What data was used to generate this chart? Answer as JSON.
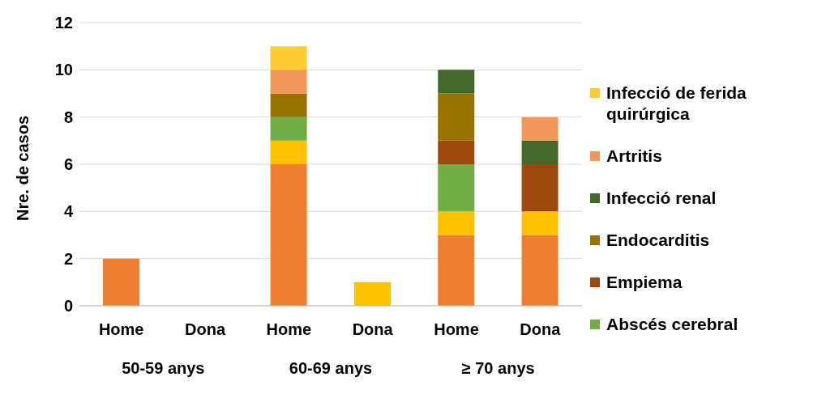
{
  "chart_data": {
    "type": "bar",
    "stacked": true,
    "ylabel": "Nre. de casos",
    "categories": [
      "Home",
      "Dona",
      "Home",
      "Dona",
      "Home",
      "Dona"
    ],
    "annotations": [
      "50-59 anys",
      "60-69 anys",
      "≥ 70 anys"
    ],
    "series": [
      {
        "color": "#ed7d31",
        "values": [
          2,
          null,
          6,
          null,
          3,
          3
        ]
      },
      {
        "color": "#ffc000",
        "values": [
          null,
          null,
          1,
          1,
          1,
          1
        ]
      },
      {
        "name": "Abscés cerebral",
        "color": "#70ad47",
        "values": [
          null,
          null,
          1,
          null,
          2,
          null
        ]
      },
      {
        "name": "Empiema",
        "color": "#9e480e",
        "values": [
          null,
          null,
          null,
          null,
          1,
          2
        ]
      },
      {
        "name": "Endocarditis",
        "color": "#997300",
        "values": [
          null,
          null,
          1,
          null,
          2,
          null
        ]
      },
      {
        "name": "Infecció renal",
        "color": "#43682b",
        "values": [
          null,
          null,
          null,
          null,
          1,
          1
        ]
      },
      {
        "name": "Artritis",
        "color": "#f1975a",
        "values": [
          null,
          null,
          1,
          null,
          null,
          1
        ]
      },
      {
        "name": "Infecció de ferida quirúrgica",
        "color": "#ffcd33",
        "values": [
          null,
          null,
          1,
          null,
          null,
          null
        ]
      }
    ],
    "ylim": [
      0,
      12
    ],
    "yticks": [
      0,
      2,
      4,
      6,
      8,
      10,
      12
    ],
    "grid": "y",
    "legend": "right"
  }
}
